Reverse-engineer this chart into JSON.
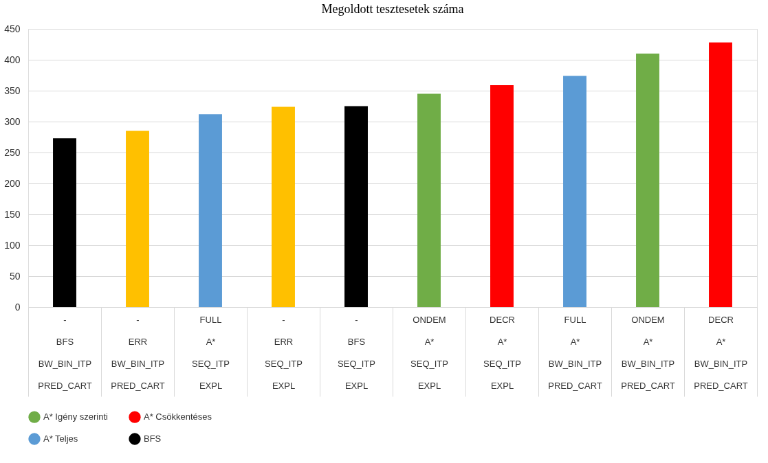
{
  "chart_data": {
    "type": "bar",
    "title": "Megoldott tesztesetek száma",
    "categories": [
      "-\nBFS\nBW_BIN_ITP\nPRED_CART",
      "-\nERR\nBW_BIN_ITP\nPRED_CART",
      "FULL\nA*\nSEQ_ITP\nEXPL",
      "-\nERR\nSEQ_ITP\nEXPL",
      "-\nBFS\nSEQ_ITP\nEXPL",
      "ONDEM\nA*\nSEQ_ITP\nEXPL",
      "DECR\nA*\nSEQ_ITP\nEXPL",
      "FULL\nA*\nBW_BIN_ITP\nPRED_CART",
      "ONDEM\nA*\nBW_BIN_ITP\nPRED_CART",
      "DECR\nA*\nBW_BIN_ITP\nPRED_CART"
    ],
    "series": [
      {
        "name": "A* Igény szerinti",
        "color": "#70ad47",
        "values": [
          null,
          null,
          null,
          null,
          null,
          345,
          null,
          null,
          410,
          null
        ]
      },
      {
        "name": "A* Csökkentéses",
        "color": "#ff0000",
        "values": [
          null,
          null,
          null,
          null,
          null,
          null,
          359,
          null,
          null,
          428
        ]
      },
      {
        "name": "A* Teljes",
        "color": "#5b9bd5",
        "values": [
          null,
          null,
          312,
          null,
          null,
          null,
          null,
          374,
          null,
          null
        ]
      },
      {
        "name": "BFS",
        "color": "#000000",
        "values": [
          273,
          null,
          null,
          null,
          325,
          null,
          null,
          null,
          null,
          null
        ]
      },
      {
        "color": "#ffc000",
        "values": [
          null,
          285,
          null,
          324,
          null,
          null,
          null,
          null,
          null,
          null
        ]
      }
    ],
    "ylim": [
      0,
      450
    ],
    "yticks": [
      0,
      50,
      100,
      150,
      200,
      250,
      300,
      350,
      400,
      450
    ],
    "grid": "y",
    "legend": "bottom"
  }
}
